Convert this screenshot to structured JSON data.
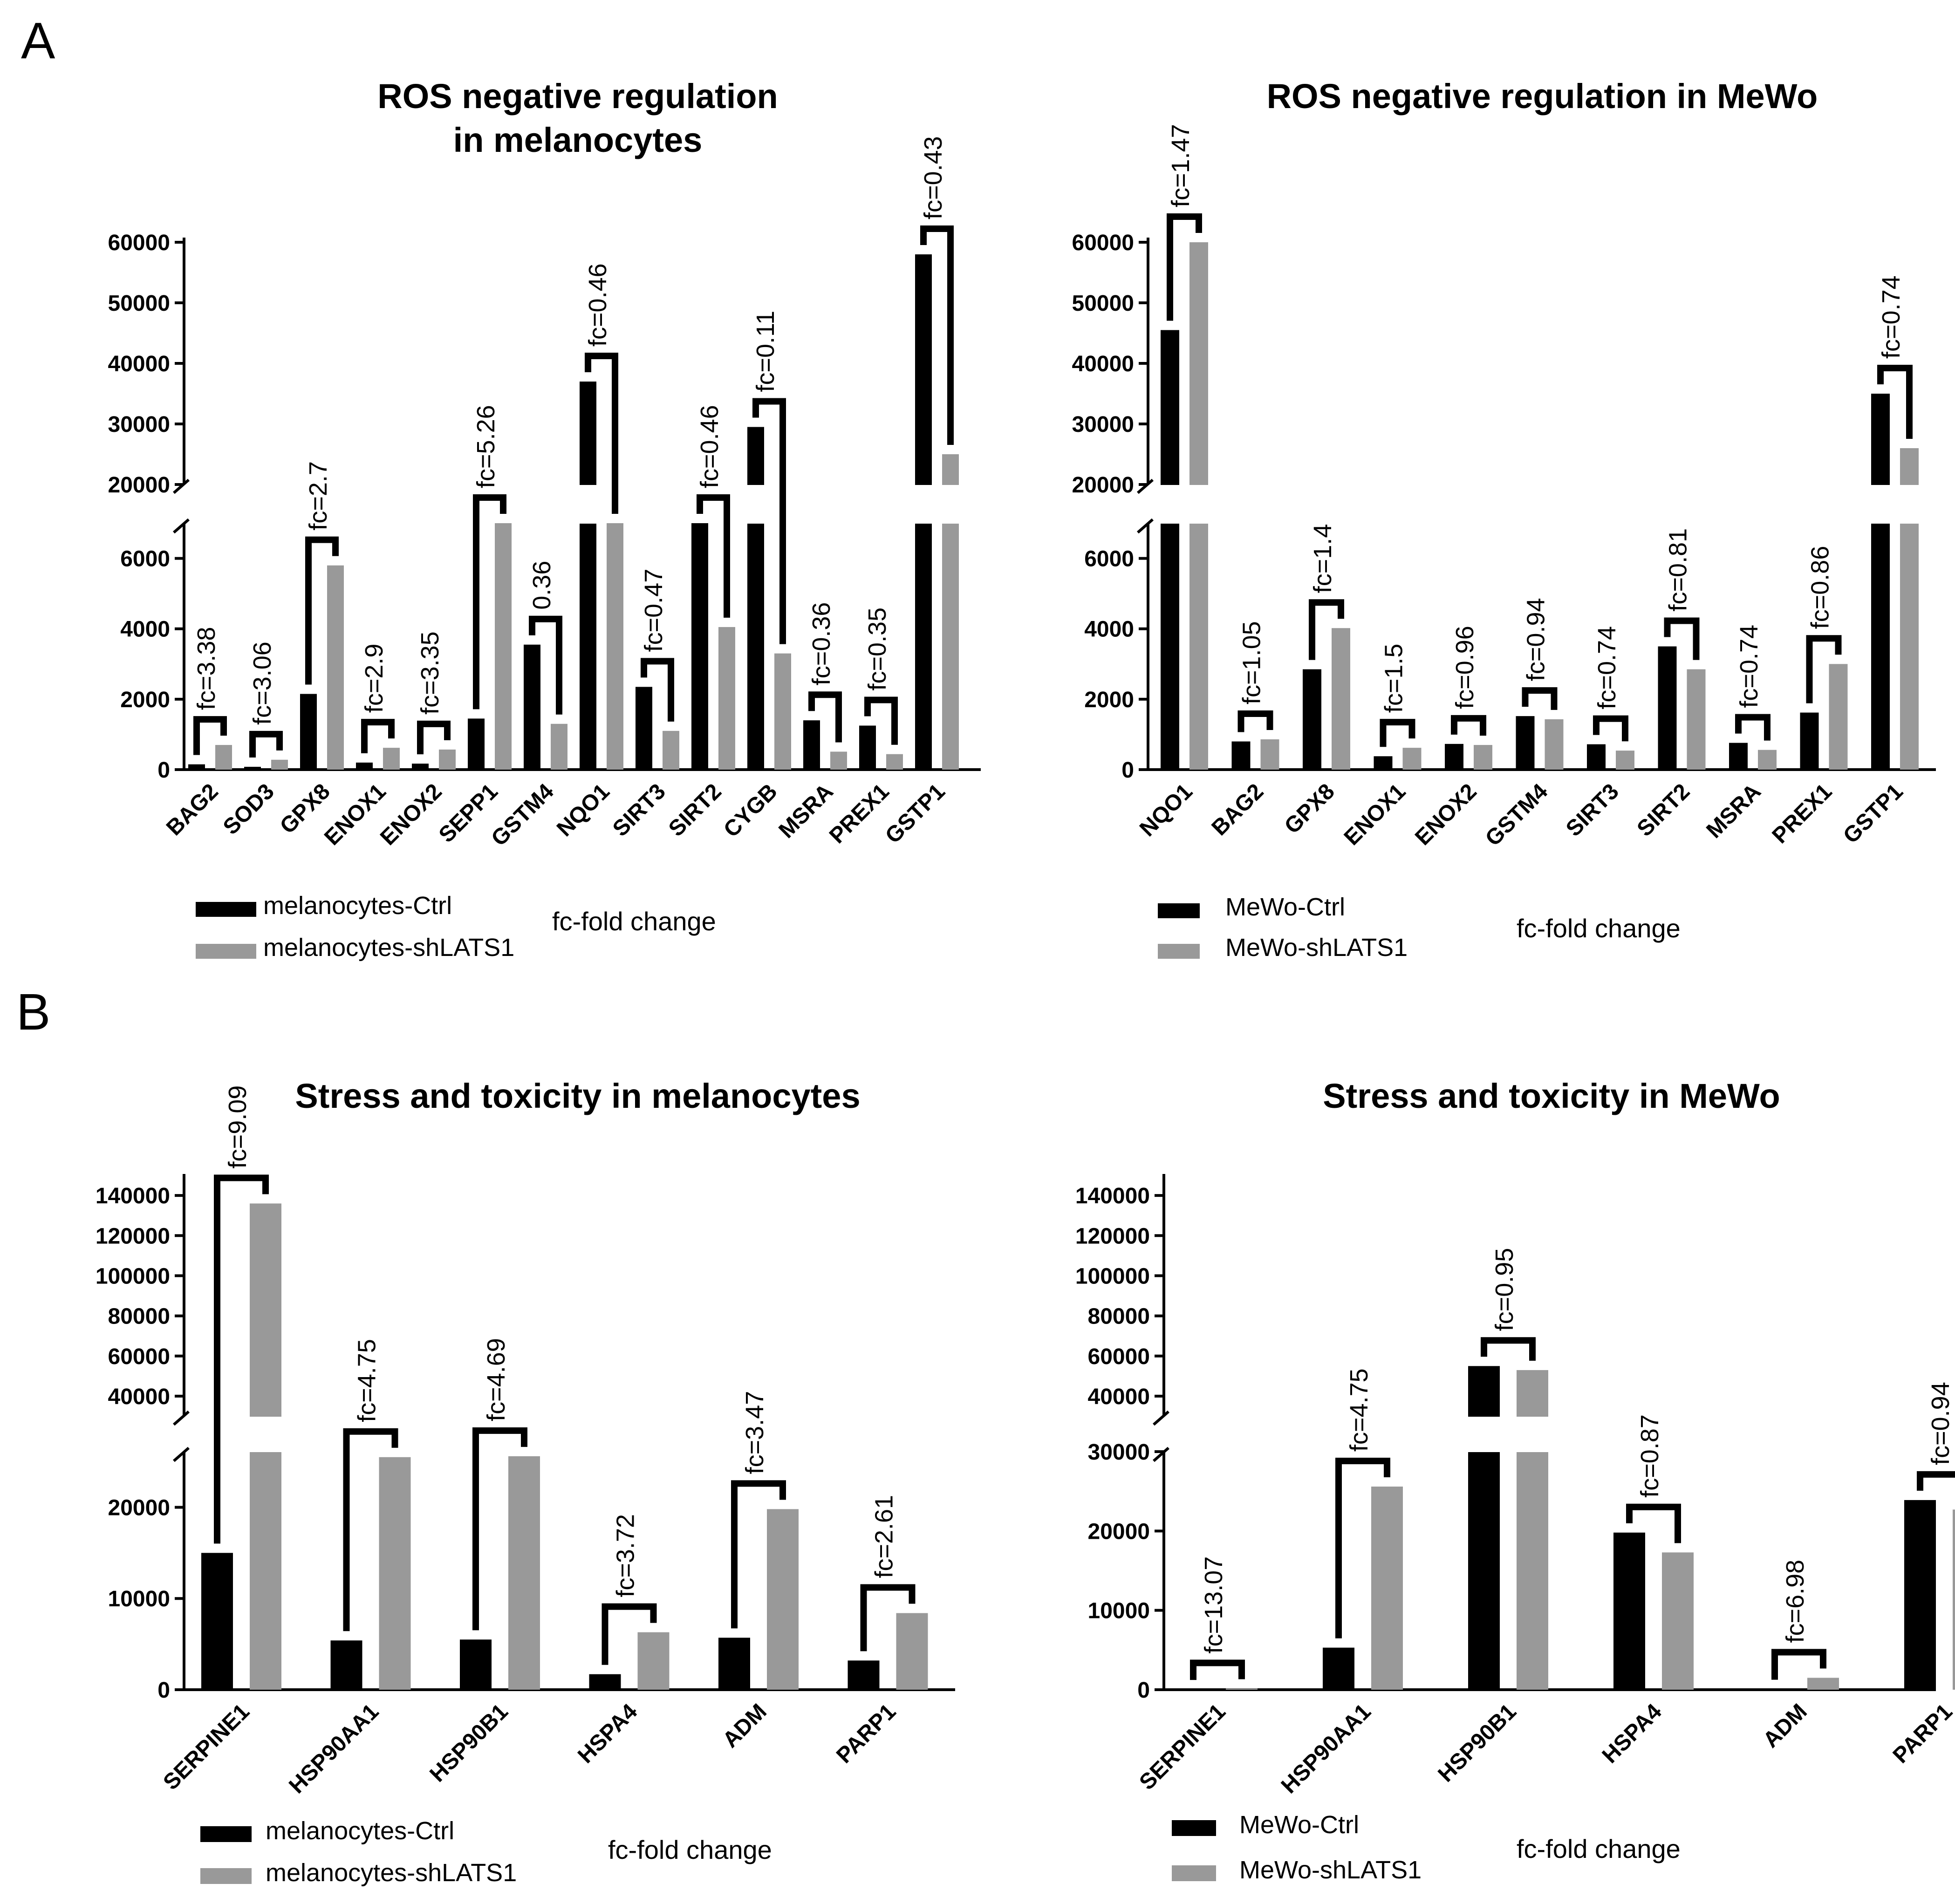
{
  "colors": {
    "ctrl": "#000000",
    "sh": "#999999",
    "text": "#000000"
  },
  "labels": {
    "A": "A",
    "B": "B"
  },
  "chart_data": [
    {
      "type": "bar",
      "title_lines": [
        "ROS negative regulation",
        "in melanocytes"
      ],
      "categories": [
        "BAG2",
        "SOD3",
        "GPX8",
        "ENOX1",
        "ENOX2",
        "SEPP1",
        "GSTM4",
        "NQO1",
        "SIRT3",
        "SIRT2",
        "CYGB",
        "MSRA",
        "PREX1",
        "GSTP1"
      ],
      "series": [
        {
          "name": "melanocytes-Ctrl",
          "values": [
            150,
            80,
            2150,
            200,
            170,
            1450,
            3550,
            37000,
            2350,
            7000,
            29500,
            1400,
            1250,
            58000
          ]
        },
        {
          "name": "melanocytes-shLATS1",
          "values": [
            700,
            280,
            5800,
            620,
            570,
            7000,
            1300,
            7000,
            1100,
            4050,
            3300,
            510,
            440,
            25000
          ]
        }
      ],
      "annotations": [
        "fc=3.38",
        "fc=3.06",
        "fc=2.7",
        "fc=2.9",
        "fc=3.35",
        "fc=5.26",
        "0.36",
        "fc=0.46",
        "fc=0.47",
        "fc=0.46",
        "fc=0.11",
        "fc=0.36",
        "fc=0.35",
        "fc=0.43"
      ],
      "y_ticks": [
        "0",
        "2000",
        "4000",
        "6000",
        "20000",
        "30000",
        "40000",
        "50000",
        "60000"
      ],
      "y_axis": "broken: 0-7000 and 20000-60000",
      "legend": [
        "melanocytes-Ctrl",
        "melanocytes-shLATS1"
      ],
      "note": "fc-fold change"
    },
    {
      "type": "bar",
      "title_lines": [
        "ROS negative regulation in MeWo"
      ],
      "categories": [
        "NQO1",
        "BAG2",
        "GPX8",
        "ENOX1",
        "ENOX2",
        "GSTM4",
        "SIRT3",
        "SIRT2",
        "MSRA",
        "PREX1",
        "GSTP1"
      ],
      "series": [
        {
          "name": "MeWo-Ctrl",
          "values": [
            45500,
            800,
            2850,
            380,
            730,
            1520,
            720,
            3500,
            760,
            1620,
            35000
          ]
        },
        {
          "name": "MeWo-shLATS1",
          "values": [
            60000,
            860,
            4020,
            620,
            700,
            1430,
            540,
            2850,
            560,
            3000,
            26000
          ]
        }
      ],
      "annotations": [
        "fc=1.47",
        "fc=1.05",
        "fc=1.4",
        "fc=1.5",
        "fc=0.96",
        "fc=0.94",
        "fc=0.74",
        "fc=0.81",
        "fc=0.74",
        "fc=0.86",
        "fc=0.74"
      ],
      "y_ticks": [
        "0",
        "2000",
        "4000",
        "6000",
        "20000",
        "30000",
        "40000",
        "50000",
        "60000"
      ],
      "y_axis": "broken: 0-7000 and 20000-60000",
      "legend": [
        "MeWo-Ctrl",
        "MeWo-shLATS1"
      ],
      "note": "fc-fold change"
    },
    {
      "type": "bar",
      "title_lines": [
        "Stress and toxicity in melanocytes"
      ],
      "categories": [
        "SERPINE1",
        "HSP90AA1",
        "HSP90B1",
        "HSPA4",
        "ADM",
        "PARP1"
      ],
      "series": [
        {
          "name": "melanocytes-Ctrl",
          "values": [
            15000,
            5400,
            5500,
            1700,
            5700,
            3200
          ]
        },
        {
          "name": "melanocytes-shLATS1",
          "values": [
            136000,
            25500,
            25600,
            6300,
            19800,
            8400
          ]
        }
      ],
      "annotations": [
        "fc=9.09",
        "fc=4.75",
        "fc=4.69",
        "fc=3.72",
        "fc=3.47",
        "fc=2.61"
      ],
      "y_ticks": [
        "0",
        "10000",
        "20000",
        "40000",
        "60000",
        "80000",
        "100000",
        "120000",
        "140000"
      ],
      "y_axis": "broken: 0-26000 and 30000-150000",
      "legend": [
        "melanocytes-Ctrl",
        "melanocytes-shLATS1"
      ],
      "note": "fc-fold change"
    },
    {
      "type": "bar",
      "title_lines": [
        "Stress and toxicity in MeWo"
      ],
      "categories": [
        "SERPINE1",
        "HSP90AA1",
        "HSP90B1",
        "HSPA4",
        "ADM",
        "PARP1"
      ],
      "series": [
        {
          "name": "MeWo-Ctrl",
          "values": [
            50,
            5300,
            55000,
            19800,
            80,
            23900
          ]
        },
        {
          "name": "MeWo-shLATS1",
          "values": [
            150,
            25600,
            53000,
            17300,
            1500,
            22700
          ]
        }
      ],
      "annotations": [
        "fc=13.07",
        "fc=4.75",
        "fc=0.95",
        "fc=0.87",
        "fc=6.98",
        "fc=0.94"
      ],
      "y_ticks": [
        "0",
        "10000",
        "20000",
        "30000",
        "40000",
        "60000",
        "80000",
        "100000",
        "120000",
        "140000"
      ],
      "y_axis": "broken: 0-30000 and 30000-150000",
      "legend": [
        "MeWo-Ctrl",
        "MeWo-shLATS1"
      ],
      "note": "fc-fold change"
    }
  ]
}
